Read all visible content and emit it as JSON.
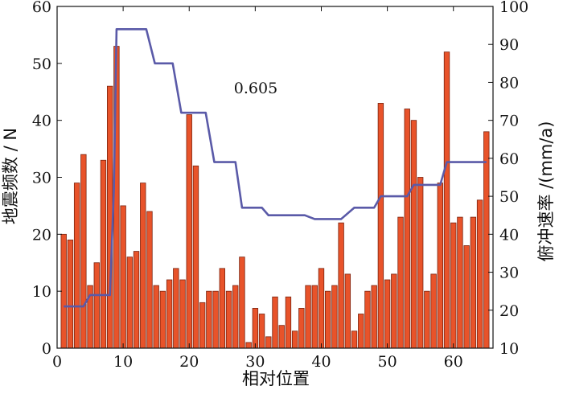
{
  "chart_data": {
    "type": "bar",
    "xlabel": "相对位置",
    "ylabel_left": "地震频数 / N",
    "ylabel_right": "俯冲速率 /(mm/a)",
    "xlim": [
      0,
      66
    ],
    "ylim_left": [
      0,
      60
    ],
    "ylim_right": [
      10,
      100
    ],
    "x_ticks": [
      0,
      10,
      20,
      30,
      40,
      50,
      60
    ],
    "y_ticks_left": [
      0,
      10,
      20,
      30,
      40,
      50,
      60
    ],
    "y_ticks_right": [
      10,
      20,
      30,
      40,
      50,
      60,
      70,
      80,
      90,
      100
    ],
    "annotation": "0.605",
    "colors": {
      "bar_fill": "#e8532a",
      "bar_stroke": "#7a2410",
      "line": "#5a5aa8"
    },
    "bars": {
      "x": [
        1,
        2,
        3,
        4,
        5,
        6,
        7,
        8,
        9,
        10,
        11,
        12,
        13,
        14,
        15,
        16,
        17,
        18,
        19,
        20,
        21,
        22,
        23,
        24,
        25,
        26,
        27,
        28,
        29,
        30,
        31,
        32,
        33,
        34,
        35,
        36,
        37,
        38,
        39,
        40,
        41,
        42,
        43,
        44,
        45,
        46,
        47,
        48,
        49,
        50,
        51,
        52,
        53,
        54,
        55,
        56,
        57,
        58,
        59,
        60,
        61,
        62,
        63,
        64,
        65
      ],
      "values": [
        20,
        19,
        29,
        34,
        11,
        15,
        33,
        46,
        53,
        25,
        16,
        17,
        29,
        24,
        11,
        10,
        12,
        14,
        12,
        41,
        32,
        8,
        10,
        10,
        14,
        10,
        11,
        16,
        1,
        7,
        6,
        2,
        9,
        4,
        9,
        3,
        7,
        11,
        11,
        14,
        10,
        11,
        22,
        13,
        3,
        6,
        10,
        11,
        43,
        12,
        13,
        23,
        42,
        40,
        30,
        10,
        13,
        29,
        52,
        22,
        23,
        18,
        23,
        26,
        38
      ]
    },
    "series_line": {
      "axis": "right",
      "x": [
        1,
        4,
        5,
        6,
        8,
        8.6,
        9,
        13.5,
        14.8,
        17.5,
        18.8,
        22.5,
        23.8,
        27,
        28,
        31,
        32,
        37.5,
        39,
        43,
        45,
        48,
        49,
        53,
        54,
        58,
        59,
        65
      ],
      "y": [
        21,
        21,
        24,
        24,
        24,
        52,
        94,
        94,
        85,
        85,
        72,
        72,
        59,
        59,
        47,
        47,
        45,
        45,
        44,
        44,
        47,
        47,
        50,
        50,
        53,
        53,
        59,
        59
      ]
    }
  }
}
